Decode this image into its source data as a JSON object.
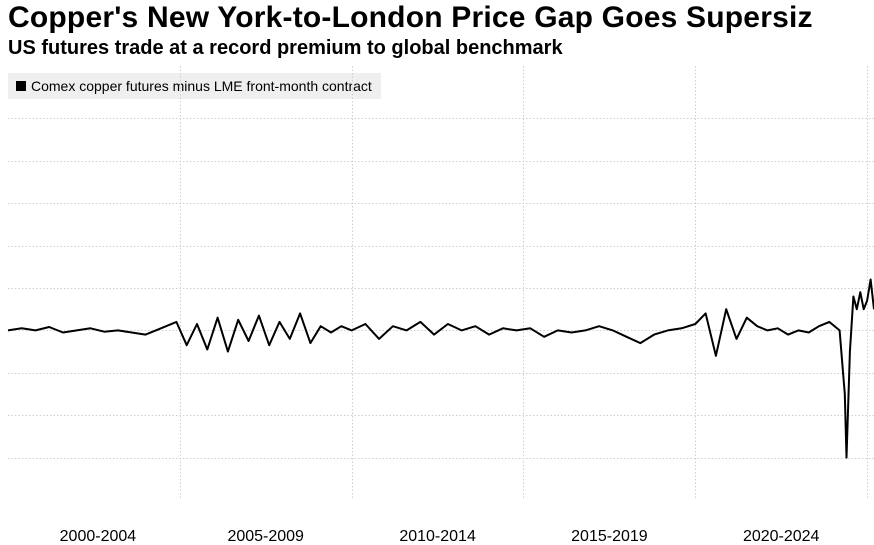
{
  "title": "Copper's New York-to-London Price Gap Goes Supersiz",
  "subtitle": "US futures trade at a record premium to global benchmark",
  "chart_data": {
    "type": "line",
    "title": "Copper's New York-to-London Price Gap Goes Supersiz",
    "subtitle": "US futures trade at a record premium to global benchmark",
    "xlabel": "",
    "ylabel": "",
    "legend_position": "top-left",
    "grid": true,
    "x_tick_labels": [
      "2000-2004",
      "2005-2009",
      "2010-2014",
      "2015-2019",
      "2020-2024"
    ],
    "x_period_bounds": [
      2000.0,
      2005.0,
      2010.0,
      2015.0,
      2020.0,
      2025.0
    ],
    "xlim": [
      2000.0,
      2025.2
    ],
    "ylim": [
      -4.0,
      6.0
    ],
    "y_gridlines": [
      -3,
      -2,
      -1,
      0,
      1,
      2,
      3,
      4,
      5
    ],
    "series": [
      {
        "name": "Comex copper futures minus LME front-month contract",
        "color": "#000000",
        "x": [
          2000.0,
          2000.4,
          2000.8,
          2001.2,
          2001.6,
          2002.0,
          2002.4,
          2002.8,
          2003.2,
          2003.6,
          2004.0,
          2004.3,
          2004.6,
          2004.9,
          2005.2,
          2005.5,
          2005.8,
          2006.1,
          2006.4,
          2006.7,
          2007.0,
          2007.3,
          2007.6,
          2007.9,
          2008.2,
          2008.5,
          2008.8,
          2009.1,
          2009.4,
          2009.7,
          2010.0,
          2010.4,
          2010.8,
          2011.2,
          2011.6,
          2012.0,
          2012.4,
          2012.8,
          2013.2,
          2013.6,
          2014.0,
          2014.4,
          2014.8,
          2015.2,
          2015.6,
          2016.0,
          2016.4,
          2016.8,
          2017.2,
          2017.6,
          2018.0,
          2018.4,
          2018.8,
          2019.2,
          2019.6,
          2020.0,
          2020.3,
          2020.6,
          2020.9,
          2021.2,
          2021.5,
          2021.8,
          2022.1,
          2022.4,
          2022.7,
          2023.0,
          2023.3,
          2023.6,
          2023.9,
          2024.2,
          2024.35,
          2024.4,
          2024.5,
          2024.6,
          2024.7,
          2024.8,
          2024.9,
          2025.0,
          2025.1,
          2025.2
        ],
        "values": [
          0.0,
          0.05,
          0.0,
          0.08,
          -0.05,
          0.0,
          0.05,
          -0.03,
          0.0,
          -0.05,
          -0.1,
          0.0,
          0.1,
          0.2,
          -0.35,
          0.15,
          -0.45,
          0.3,
          -0.5,
          0.25,
          -0.25,
          0.35,
          -0.35,
          0.2,
          -0.2,
          0.4,
          -0.3,
          0.1,
          -0.05,
          0.1,
          0.0,
          0.15,
          -0.2,
          0.1,
          0.0,
          0.2,
          -0.1,
          0.15,
          0.0,
          0.1,
          -0.1,
          0.05,
          0.0,
          0.05,
          -0.15,
          0.0,
          -0.05,
          0.0,
          0.1,
          0.0,
          -0.15,
          -0.3,
          -0.1,
          0.0,
          0.05,
          0.15,
          0.4,
          -0.6,
          0.5,
          -0.2,
          0.3,
          0.1,
          0.0,
          0.05,
          -0.1,
          0.0,
          -0.05,
          0.1,
          0.2,
          0.0,
          -1.5,
          -3.0,
          -0.5,
          0.8,
          0.5,
          0.9,
          0.5,
          0.7,
          1.2,
          0.5
        ]
      }
    ]
  }
}
